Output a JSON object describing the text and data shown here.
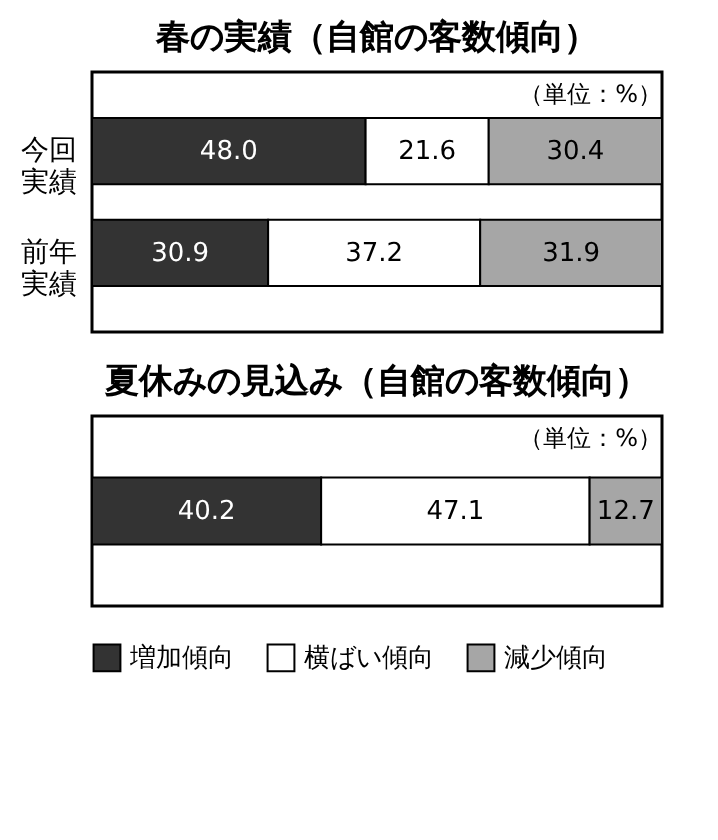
{
  "chart_data": [
    {
      "type": "bar",
      "title": "春の実績（自館の客数傾向）",
      "orientation": "horizontal",
      "stacked": true,
      "data_labels": true,
      "legend": false,
      "annotations": [
        "（単位：%）"
      ],
      "categories": [
        "今回実績",
        "前年実績"
      ],
      "series": [
        {
          "color": "#333333",
          "values": [
            48.0,
            30.9
          ],
          "value_labels": [
            "48.0",
            "30.9"
          ]
        },
        {
          "color": "#ffffff",
          "values": [
            21.6,
            37.2
          ],
          "value_labels": [
            "21.6",
            "37.2"
          ]
        },
        {
          "color": "#a6a6a6",
          "values": [
            30.4,
            31.9
          ],
          "value_labels": [
            "30.4",
            "31.9"
          ]
        }
      ]
    },
    {
      "type": "bar",
      "title": "夏休みの見込み（自館の客数傾向）",
      "orientation": "horizontal",
      "stacked": true,
      "data_labels": true,
      "legend": "bottom",
      "annotations": [
        "（単位：%）"
      ],
      "categories": [
        null
      ],
      "series": [
        {
          "name": "増加傾向",
          "color": "#333333",
          "values": [
            40.2
          ]
        },
        {
          "name": "横ばい傾向",
          "color": "#ffffff",
          "values": [
            47.1
          ]
        },
        {
          "name": "減少傾向",
          "color": "#a6a6a6",
          "values": [
            12.7
          ]
        }
      ]
    }
  ]
}
